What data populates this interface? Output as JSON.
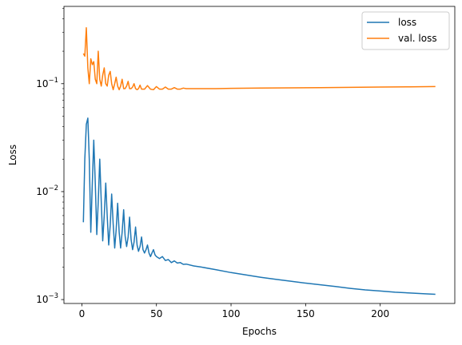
{
  "chart_data": {
    "type": "line",
    "title": "",
    "xlabel": "Epochs",
    "ylabel": "Loss",
    "xlim": [
      -12,
      250
    ],
    "ylim": [
      0.00092,
      0.52
    ],
    "y_scale": "log",
    "grid": false,
    "legend_position": "top-right",
    "x_ticks": [
      0,
      50,
      100,
      150,
      200
    ],
    "x_tick_labels": [
      "0",
      "50",
      "100",
      "150",
      "200"
    ],
    "y_ticks": [
      0.001,
      0.01,
      0.1
    ],
    "y_tick_base": "10",
    "y_tick_exponents": [
      "−3",
      "−2",
      "−1"
    ],
    "series": [
      {
        "name": "loss",
        "color": "#1f77b4",
        "x": [
          1,
          2,
          3,
          4,
          5,
          6,
          7,
          8,
          9,
          10,
          11,
          12,
          13,
          14,
          15,
          16,
          17,
          18,
          19,
          20,
          21,
          22,
          23,
          24,
          25,
          26,
          27,
          28,
          29,
          30,
          31,
          32,
          33,
          34,
          35,
          36,
          37,
          38,
          39,
          40,
          41,
          42,
          43,
          44,
          45,
          46,
          47,
          48,
          49,
          50,
          52,
          54,
          56,
          58,
          60,
          62,
          64,
          66,
          68,
          70,
          75,
          80,
          90,
          100,
          110,
          120,
          130,
          140,
          150,
          160,
          170,
          180,
          190,
          200,
          210,
          220,
          230,
          237
        ],
        "y": [
          0.0052,
          0.02,
          0.042,
          0.048,
          0.02,
          0.0042,
          0.012,
          0.03,
          0.012,
          0.004,
          0.008,
          0.02,
          0.008,
          0.0035,
          0.006,
          0.012,
          0.006,
          0.0032,
          0.0049,
          0.0095,
          0.005,
          0.003,
          0.0044,
          0.0078,
          0.0042,
          0.003,
          0.0042,
          0.0068,
          0.0039,
          0.0031,
          0.0038,
          0.0058,
          0.0036,
          0.0029,
          0.0034,
          0.0047,
          0.0032,
          0.0028,
          0.0031,
          0.0038,
          0.0029,
          0.0027,
          0.0029,
          0.0032,
          0.0027,
          0.0025,
          0.0027,
          0.0029,
          0.0026,
          0.0025,
          0.0024,
          0.0025,
          0.0023,
          0.00235,
          0.0022,
          0.00228,
          0.00218,
          0.0022,
          0.00212,
          0.00213,
          0.00205,
          0.002,
          0.00189,
          0.00178,
          0.00169,
          0.00161,
          0.00154,
          0.00148,
          0.00142,
          0.00137,
          0.00132,
          0.00127,
          0.00123,
          0.0012,
          0.00117,
          0.00115,
          0.00113,
          0.00112
        ]
      },
      {
        "name": "val. loss",
        "color": "#ff7f0e",
        "x": [
          1,
          2,
          3,
          4,
          5,
          6,
          7,
          8,
          9,
          10,
          11,
          12,
          13,
          14,
          15,
          16,
          17,
          18,
          19,
          20,
          21,
          22,
          23,
          24,
          25,
          26,
          27,
          28,
          29,
          30,
          31,
          32,
          33,
          34,
          35,
          36,
          37,
          38,
          39,
          40,
          42,
          44,
          46,
          48,
          50,
          52,
          54,
          56,
          58,
          60,
          62,
          64,
          66,
          68,
          70,
          80,
          90,
          100,
          120,
          140,
          160,
          180,
          200,
          220,
          237
        ],
        "y": [
          0.19,
          0.18,
          0.33,
          0.14,
          0.1,
          0.17,
          0.15,
          0.16,
          0.11,
          0.1,
          0.2,
          0.11,
          0.095,
          0.12,
          0.14,
          0.1,
          0.095,
          0.12,
          0.13,
          0.1,
          0.088,
          0.1,
          0.115,
          0.095,
          0.088,
          0.095,
          0.11,
          0.09,
          0.09,
          0.095,
          0.105,
          0.09,
          0.09,
          0.093,
          0.1,
          0.09,
          0.088,
          0.09,
          0.097,
          0.089,
          0.089,
          0.096,
          0.089,
          0.088,
          0.094,
          0.089,
          0.089,
          0.093,
          0.089,
          0.089,
          0.092,
          0.089,
          0.089,
          0.091,
          0.09,
          0.09,
          0.09,
          0.0905,
          0.091,
          0.0915,
          0.092,
          0.0925,
          0.093,
          0.0935,
          0.094
        ]
      }
    ]
  }
}
